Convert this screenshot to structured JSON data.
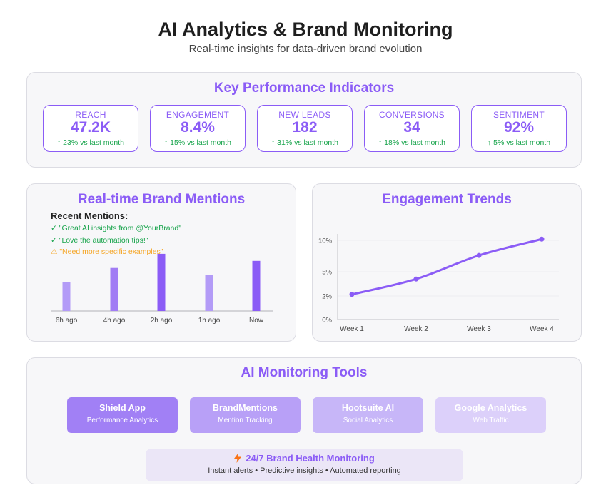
{
  "header": {
    "title": "AI Analytics & Brand Monitoring",
    "subtitle": "Real-time insights for data-driven brand evolution"
  },
  "kpi_section": {
    "title": "Key Performance Indicators",
    "cards": [
      {
        "label": "REACH",
        "value": "47.2K",
        "change": "↑ 23% vs last month"
      },
      {
        "label": "ENGAGEMENT",
        "value": "8.4%",
        "change": "↑ 15% vs last month"
      },
      {
        "label": "NEW LEADS",
        "value": "182",
        "change": "↑ 31% vs last month"
      },
      {
        "label": "CONVERSIONS",
        "value": "34",
        "change": "↑ 18% vs last month"
      },
      {
        "label": "SENTIMENT",
        "value": "92%",
        "change": "↑ 5% vs last month"
      }
    ]
  },
  "mentions_section": {
    "title": "Real-time Brand Mentions",
    "recent_heading": "Recent Mentions:",
    "mentions": [
      {
        "text": "✓ \"Great AI insights from @YourBrand\"",
        "color": "#16a34a"
      },
      {
        "text": "✓ \"Love the automation tips!\"",
        "color": "#16a34a"
      },
      {
        "text": "⚠ \"Need more specific examples\"",
        "color": "#f5a524"
      }
    ]
  },
  "trends_section": {
    "title": "Engagement Trends"
  },
  "chart_data": [
    {
      "type": "bar",
      "categories": [
        "6h ago",
        "4h ago",
        "2h ago",
        "1h ago",
        "Now"
      ],
      "values": [
        45,
        67,
        89,
        56,
        78
      ],
      "colors": [
        "#b39bf7",
        "#a17cf4",
        "#8b5cf6",
        "#b39bf7",
        "#8b5cf6"
      ],
      "ylim": [
        0,
        100
      ],
      "title": "",
      "xlabel": "",
      "ylabel": ""
    },
    {
      "type": "line",
      "categories": [
        "Week 1",
        "Week 2",
        "Week 3",
        "Week 4"
      ],
      "values": [
        2.2,
        4.1,
        7.6,
        10.2
      ],
      "yticks": [
        "0%",
        "2%",
        "5%",
        "10%"
      ],
      "ylim": [
        0,
        11
      ],
      "color": "#8b5cf6",
      "grid": true,
      "title": "",
      "xlabel": "",
      "ylabel": ""
    }
  ],
  "tools_section": {
    "title": "AI Monitoring Tools",
    "tools": [
      {
        "name": "Shield App",
        "desc": "Performance Analytics",
        "color": "#a180f5"
      },
      {
        "name": "BrandMentions",
        "desc": "Mention Tracking",
        "color": "#b8a0f7"
      },
      {
        "name": "Hootsuite AI",
        "desc": "Social Analytics",
        "color": "#c7b6f8"
      },
      {
        "name": "Google Analytics",
        "desc": "Web Traffic",
        "color": "#dcd0fa"
      }
    ],
    "health": {
      "icon": "lightning-icon",
      "title": "24/7 Brand Health Monitoring",
      "detail": "Instant alerts • Predictive insights • Automated reporting"
    }
  }
}
